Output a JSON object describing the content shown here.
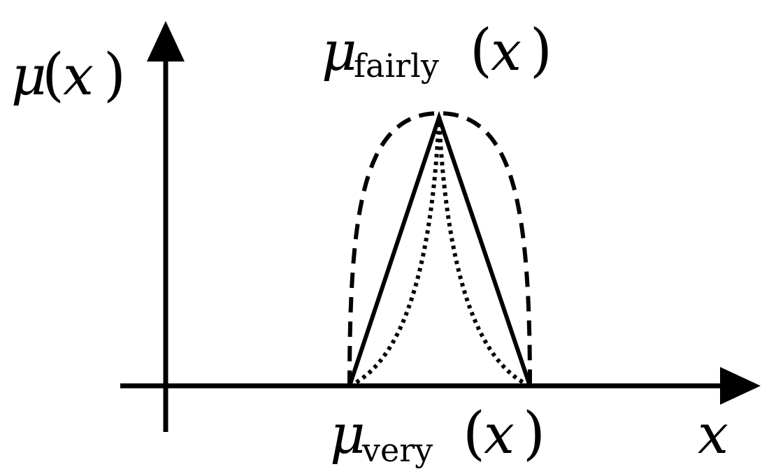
{
  "labels": {
    "y_axis": {
      "symbol": "μ",
      "open": "(",
      "var": "x",
      "close": ")"
    },
    "x_axis": {
      "var": "x"
    },
    "fairly": {
      "symbol": "μ",
      "subscript": "fairly",
      "open": "(",
      "var": "x",
      "close": ")"
    },
    "very": {
      "symbol": "μ",
      "subscript": "very",
      "open": "(",
      "var": "x",
      "close": ")"
    }
  },
  "colors": {
    "stroke": "#000000",
    "background": "#ffffff"
  }
}
